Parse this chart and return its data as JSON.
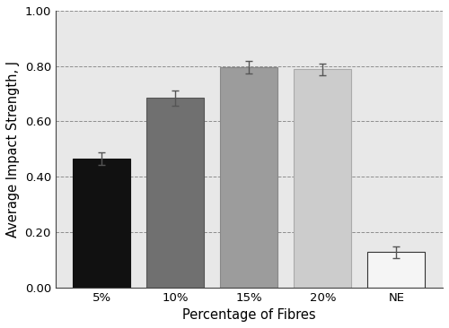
{
  "categories": [
    "5%",
    "10%",
    "15%",
    "20%",
    "NE"
  ],
  "values": [
    0.465,
    0.685,
    0.795,
    0.788,
    0.127
  ],
  "errors": [
    0.022,
    0.028,
    0.022,
    0.022,
    0.02
  ],
  "bar_colors": [
    "#111111",
    "#707070",
    "#9c9c9c",
    "#cccccc",
    "#f5f5f5"
  ],
  "bar_edgecolors": [
    "#111111",
    "#555555",
    "#888888",
    "#aaaaaa",
    "#333333"
  ],
  "xlabel": "Percentage of Fibres",
  "ylabel": "Average Impact Strength, J",
  "ylim": [
    0.0,
    1.0
  ],
  "yticks": [
    0.0,
    0.2,
    0.4,
    0.6,
    0.8,
    1.0
  ],
  "grid_color": "#777777",
  "grid_linestyle": "--",
  "plot_bg_color": "#e8e8e8",
  "figure_bg_color": "#ffffff",
  "bar_width": 0.78,
  "error_capsize": 3,
  "error_color": "#555555",
  "tick_fontsize": 9.5,
  "label_fontsize": 10.5
}
